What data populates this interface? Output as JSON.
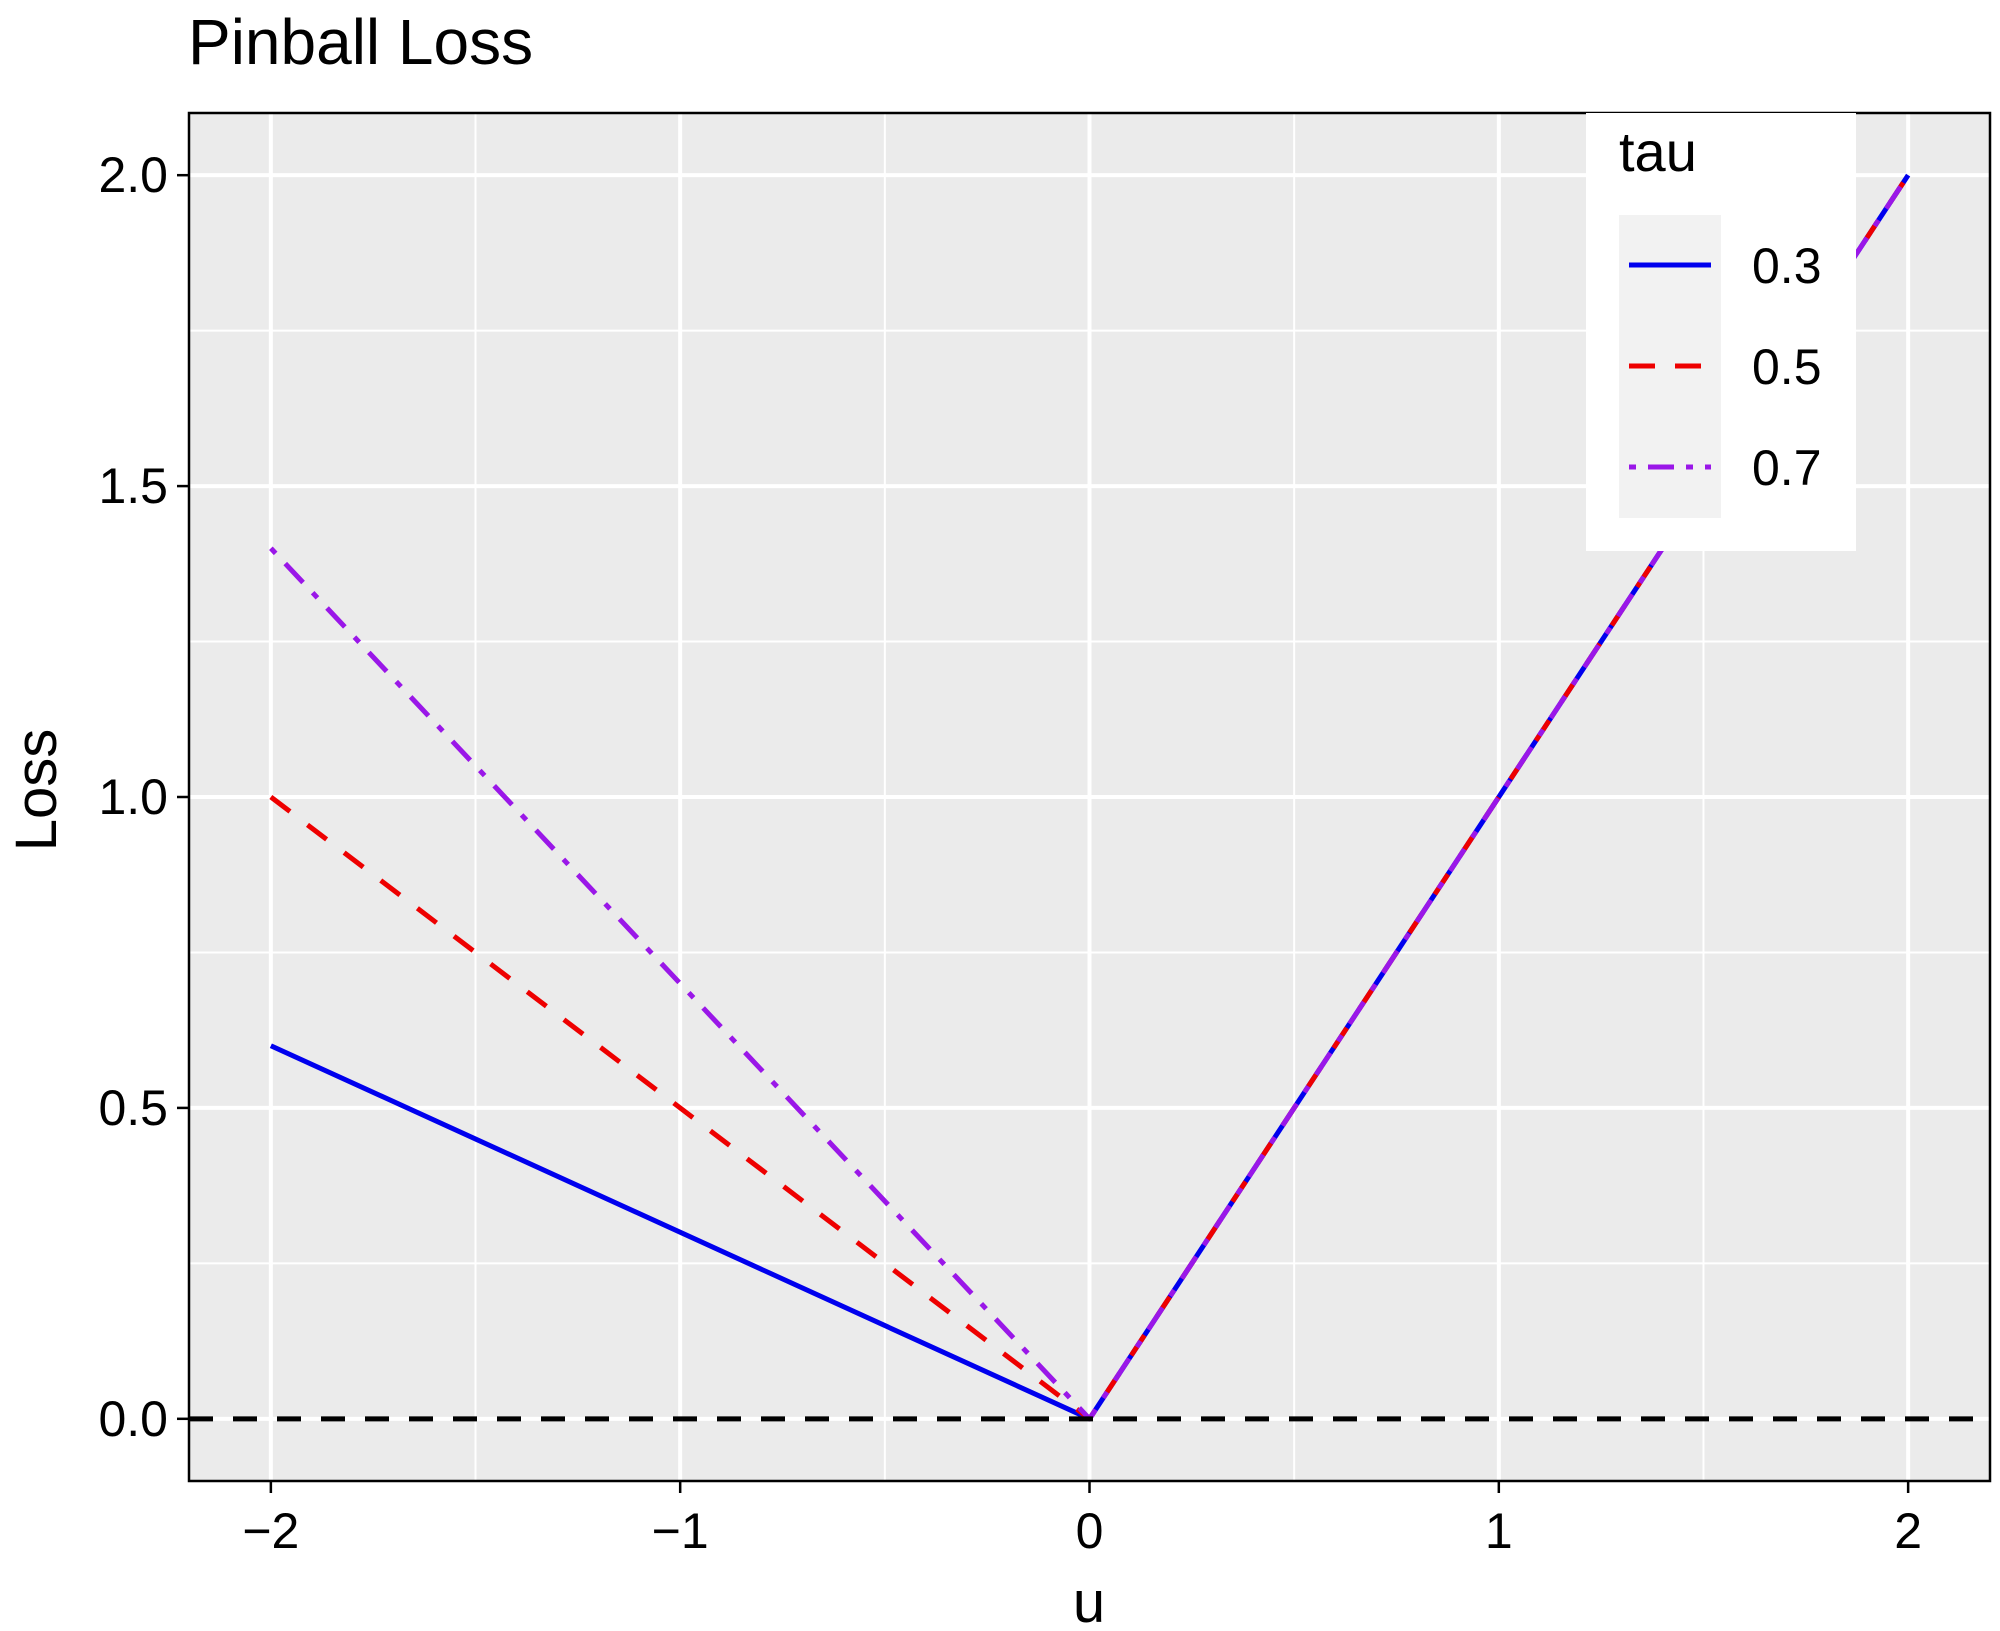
{
  "chart_data": {
    "type": "line",
    "title": "Pinball Loss",
    "xlabel": "u",
    "ylabel": "Loss",
    "xlim": [
      -2.2,
      2.2
    ],
    "ylim": [
      -0.1,
      2.1
    ],
    "x_ticks": [
      -2,
      -1,
      0,
      1,
      2
    ],
    "x_tick_labels": [
      "−2",
      "−1",
      "0",
      "1",
      "2"
    ],
    "y_ticks": [
      0,
      0.5,
      1,
      1.5,
      2
    ],
    "y_tick_labels": [
      "0.0",
      "0.5",
      "1.0",
      "1.5",
      "2.0"
    ],
    "grid": true,
    "legend_title": "tau",
    "legend_position": "top-right",
    "reference_line": {
      "y": 0,
      "color": "#000000",
      "style": "dashed"
    },
    "series": [
      {
        "name": "0.3",
        "color": "#0000ee",
        "style": "solid",
        "x": [
          -2,
          0,
          2
        ],
        "y": [
          0.6,
          0,
          2
        ]
      },
      {
        "name": "0.5",
        "color": "#ee0000",
        "style": "dashed",
        "x": [
          -2,
          0,
          2
        ],
        "y": [
          1.0,
          0,
          2
        ]
      },
      {
        "name": "0.7",
        "color": "#9a17e8",
        "style": "dotdash",
        "x": [
          -2,
          0,
          2
        ],
        "y": [
          1.4,
          0,
          2
        ]
      }
    ]
  }
}
